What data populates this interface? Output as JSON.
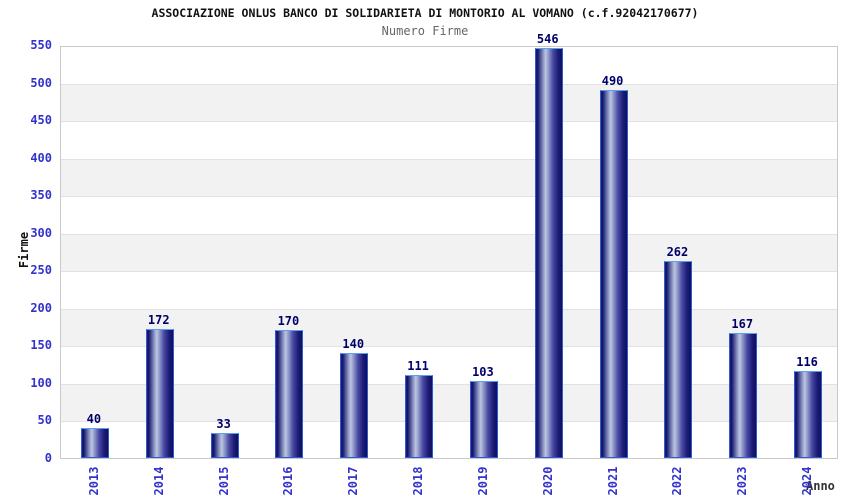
{
  "title": "ASSOCIAZIONE ONLUS BANCO DI SOLIDARIETA DI MONTORIO AL VOMANO (c.f.92042170677)",
  "subtitle": "Numero Firme",
  "chart_data": {
    "type": "bar",
    "title": "Numero Firme",
    "xlabel": "Anno",
    "ylabel": "Firme",
    "categories": [
      "2013",
      "2014",
      "2015",
      "2016",
      "2017",
      "2018",
      "2019",
      "2020",
      "2021",
      "2022",
      "2023",
      "2024"
    ],
    "values": [
      40,
      172,
      33,
      170,
      140,
      111,
      103,
      546,
      490,
      262,
      167,
      116
    ],
    "ylim": [
      0,
      550
    ],
    "ytick_step": 50,
    "yticks": [
      0,
      50,
      100,
      150,
      200,
      250,
      300,
      350,
      400,
      450,
      500,
      550
    ],
    "grid": "horizontal-bands-alternating",
    "legend_position": "none",
    "bar_style": "vertical navy cylinder-gradient bars with light blue border",
    "x_tick_rotation": -90
  },
  "colors": {
    "title": "#111111",
    "subtitle": "#666666",
    "axis_tick_label": "#3333cc",
    "value_label": "#00006a",
    "bar_border": "#2d5bd0",
    "bar_border_top": "#5aa0f0",
    "bar_dark": "#131368",
    "bar_highlight": "#bcc6e2",
    "band_gray": "#f2f2f2",
    "frame": "#c9c9c9",
    "xlabel_color": "#333333",
    "ylabel_color": "#111111"
  }
}
